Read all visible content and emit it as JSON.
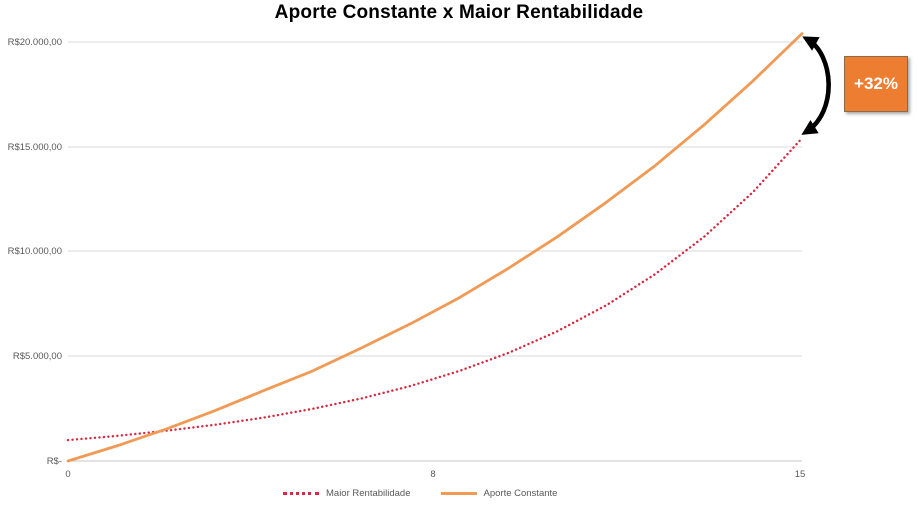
{
  "title": "Aporte Constante x Maior Rentabilidade",
  "annotation": {
    "label": "+32%",
    "box_color": "#ED7D31",
    "text_color": "#FFFFFF"
  },
  "colors": {
    "gridline": "#D9D9D9",
    "axis_line": "#C6C6C6",
    "tick_text": "#595959",
    "arrow": "#000000"
  },
  "chart_data": {
    "type": "line",
    "x": [
      0,
      1,
      2,
      3,
      4,
      5,
      6,
      7,
      8,
      9,
      10,
      11,
      12,
      13,
      14,
      15
    ],
    "x_tick_labels": [
      "0",
      "8",
      "15"
    ],
    "y_tick_labels": [
      "R$20.000,00",
      "R$15.000,00",
      "R$10.000,00",
      "R$5.000,00",
      "R$-"
    ],
    "ylim": [
      0,
      20000
    ],
    "grid": true,
    "legend_position": "bottom",
    "title": "Aporte Constante x Maior Rentabilidade",
    "series": [
      {
        "name": "Maior Rentabilidade",
        "style": "dotted",
        "color": "#D42B43",
        "values": [
          1000,
          1200,
          1440,
          1730,
          2070,
          2490,
          2990,
          3580,
          4300,
          5160,
          6190,
          7430,
          8920,
          10700,
          12840,
          15410
        ]
      },
      {
        "name": "Aporte Constante",
        "style": "solid",
        "color": "#F09A55",
        "values": [
          0,
          720,
          1520,
          2400,
          3360,
          4300,
          5400,
          6550,
          7800,
          9200,
          10700,
          12350,
          14100,
          16050,
          18150,
          20400
        ]
      }
    ],
    "annotations": [
      {
        "text": "+32%",
        "meaning": "gap between Aporte Constante and Maior Rentabilidade at final year"
      }
    ]
  }
}
